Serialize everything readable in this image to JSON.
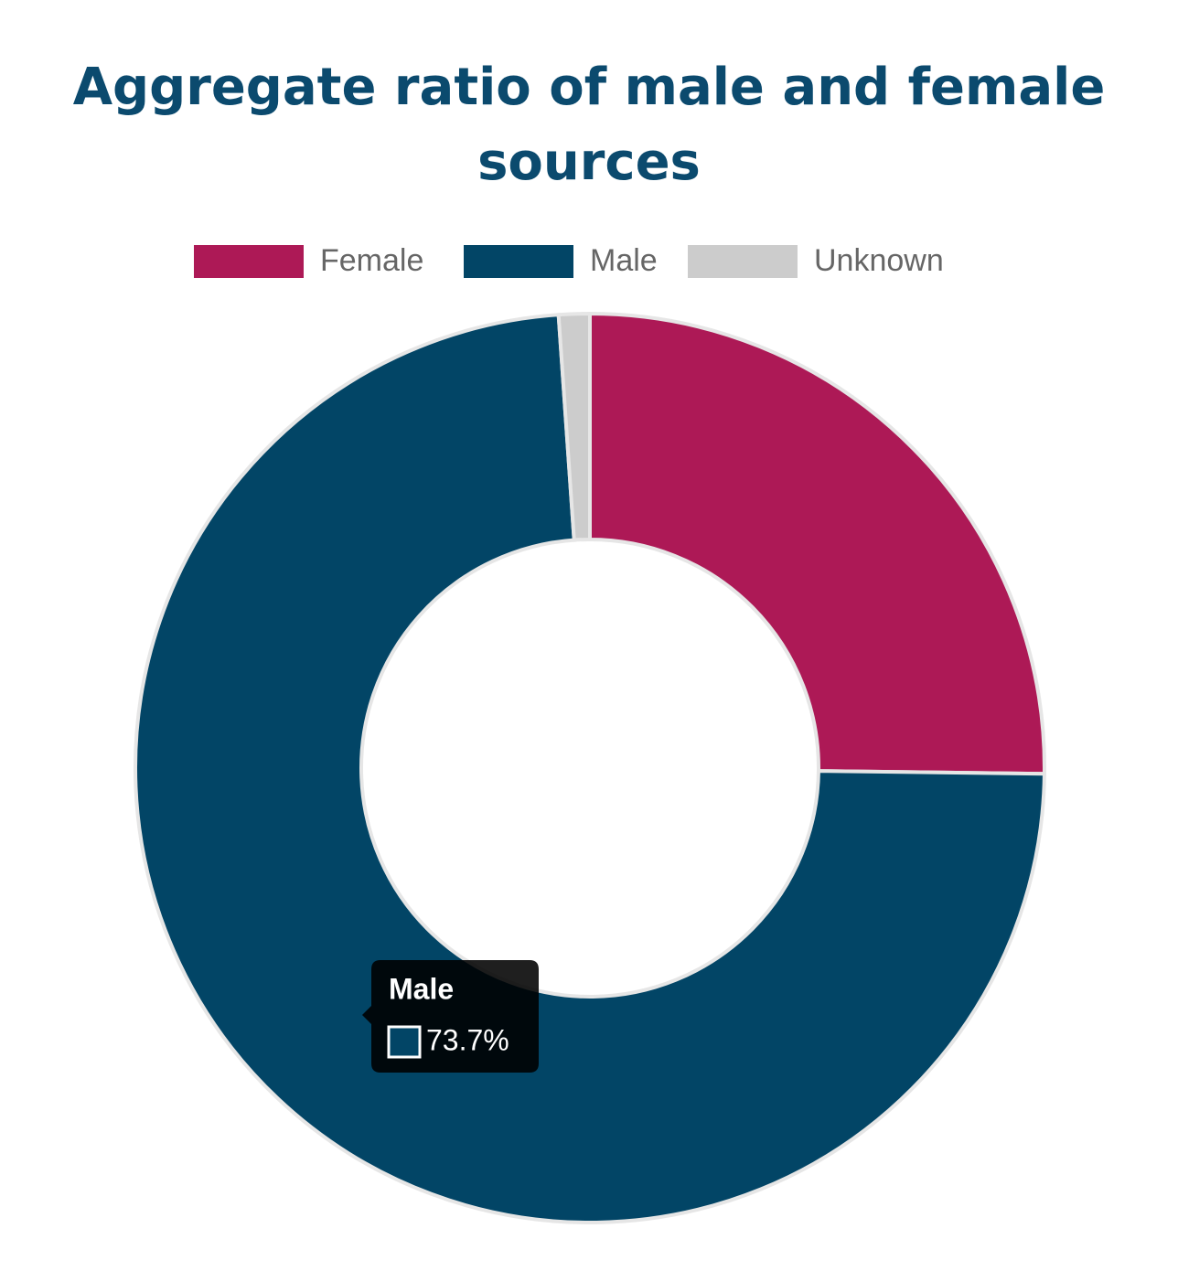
{
  "chart_data": {
    "type": "doughnut",
    "title": "Aggregate ratio of male and female sources",
    "categories": [
      "Female",
      "Male",
      "Unknown"
    ],
    "values": [
      25.2,
      73.7,
      1.1
    ],
    "value_labels": [
      null,
      "73.7%",
      null
    ],
    "colors": [
      "#ad1956",
      "#024566",
      "#cccccc"
    ],
    "legend": "top"
  }
}
